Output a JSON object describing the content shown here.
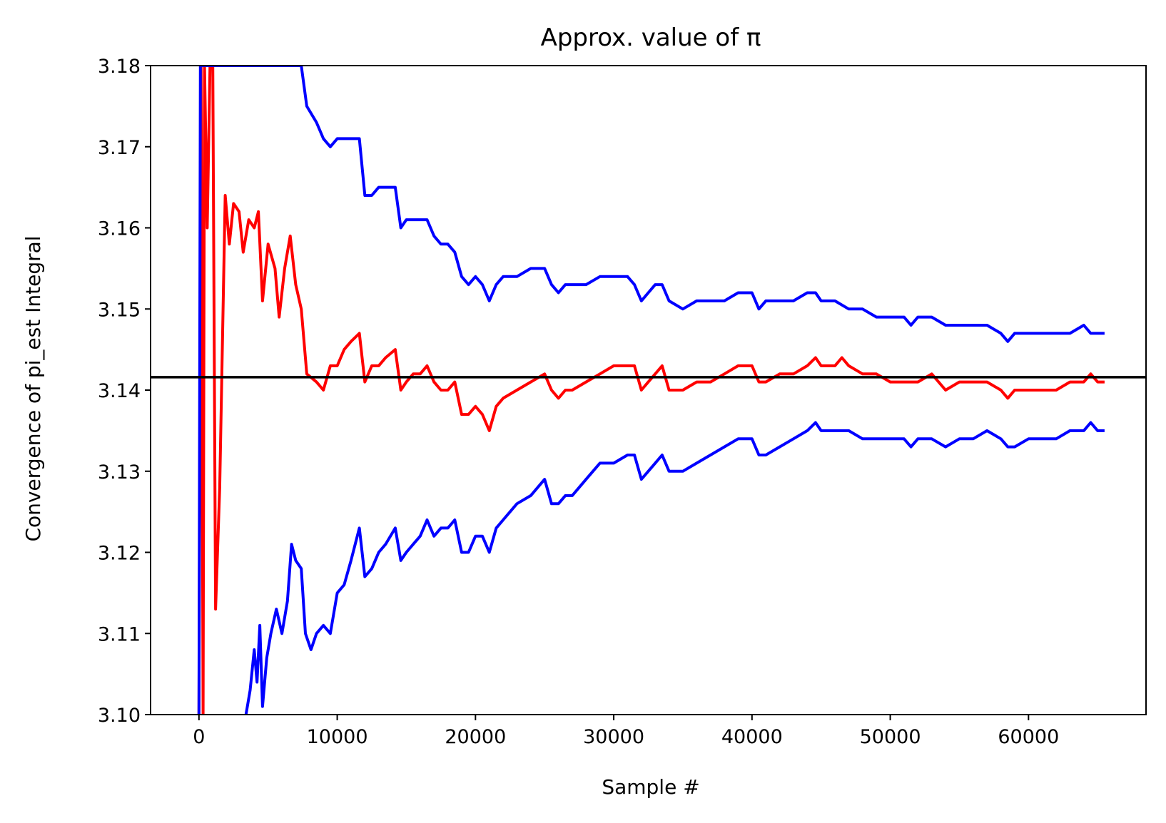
{
  "chart_data": {
    "type": "line",
    "title": "Approx. value of π",
    "xlabel": "Sample #",
    "ylabel": "Convergence of pi_est Integral",
    "xlim": [
      -3500,
      68500
    ],
    "ylim": [
      3.1,
      3.18
    ],
    "x_ticks": [
      0,
      10000,
      20000,
      30000,
      40000,
      50000,
      60000
    ],
    "x_tick_labels": [
      "0",
      "10000",
      "20000",
      "30000",
      "40000",
      "50000",
      "60000"
    ],
    "y_ticks": [
      3.1,
      3.11,
      3.12,
      3.13,
      3.14,
      3.15,
      3.16,
      3.17,
      3.18
    ],
    "y_tick_labels": [
      "3.10",
      "3.11",
      "3.12",
      "3.13",
      "3.14",
      "3.15",
      "3.16",
      "3.17",
      "3.18"
    ],
    "grid": false,
    "reference_line": {
      "y": 3.14159,
      "color": "#000000"
    },
    "series": [
      {
        "color": "#ff0000",
        "points": [
          [
            0,
            3.1
          ],
          [
            150,
            3.18
          ],
          [
            300,
            3.1
          ],
          [
            400,
            3.18
          ],
          [
            600,
            3.16
          ],
          [
            800,
            3.18
          ],
          [
            1000,
            3.18
          ],
          [
            1200,
            3.113
          ],
          [
            1500,
            3.128
          ],
          [
            1900,
            3.164
          ],
          [
            2200,
            3.158
          ],
          [
            2500,
            3.163
          ],
          [
            2900,
            3.162
          ],
          [
            3200,
            3.157
          ],
          [
            3600,
            3.161
          ],
          [
            4000,
            3.16
          ],
          [
            4300,
            3.162
          ],
          [
            4600,
            3.151
          ],
          [
            5000,
            3.158
          ],
          [
            5500,
            3.155
          ],
          [
            5800,
            3.149
          ],
          [
            6200,
            3.155
          ],
          [
            6600,
            3.159
          ],
          [
            7000,
            3.153
          ],
          [
            7400,
            3.15
          ],
          [
            7800,
            3.142
          ],
          [
            8500,
            3.141
          ],
          [
            9000,
            3.14
          ],
          [
            9500,
            3.143
          ],
          [
            10000,
            3.143
          ],
          [
            10500,
            3.145
          ],
          [
            11000,
            3.146
          ],
          [
            11600,
            3.147
          ],
          [
            12000,
            3.141
          ],
          [
            12500,
            3.143
          ],
          [
            13000,
            3.143
          ],
          [
            13500,
            3.144
          ],
          [
            14200,
            3.145
          ],
          [
            14600,
            3.14
          ],
          [
            15000,
            3.141
          ],
          [
            15500,
            3.142
          ],
          [
            16000,
            3.142
          ],
          [
            16500,
            3.143
          ],
          [
            17000,
            3.141
          ],
          [
            17500,
            3.14
          ],
          [
            18000,
            3.14
          ],
          [
            18500,
            3.141
          ],
          [
            19000,
            3.137
          ],
          [
            19500,
            3.137
          ],
          [
            20000,
            3.138
          ],
          [
            20500,
            3.137
          ],
          [
            21000,
            3.135
          ],
          [
            21500,
            3.138
          ],
          [
            22000,
            3.139
          ],
          [
            23000,
            3.14
          ],
          [
            24000,
            3.141
          ],
          [
            25000,
            3.142
          ],
          [
            25500,
            3.14
          ],
          [
            26000,
            3.139
          ],
          [
            26500,
            3.14
          ],
          [
            27000,
            3.14
          ],
          [
            28000,
            3.141
          ],
          [
            29000,
            3.142
          ],
          [
            30000,
            3.143
          ],
          [
            31000,
            3.143
          ],
          [
            31500,
            3.143
          ],
          [
            32000,
            3.14
          ],
          [
            32500,
            3.141
          ],
          [
            33000,
            3.142
          ],
          [
            33500,
            3.143
          ],
          [
            34000,
            3.14
          ],
          [
            35000,
            3.14
          ],
          [
            36000,
            3.141
          ],
          [
            37000,
            3.141
          ],
          [
            38000,
            3.142
          ],
          [
            39000,
            3.143
          ],
          [
            40000,
            3.143
          ],
          [
            40500,
            3.141
          ],
          [
            41000,
            3.141
          ],
          [
            42000,
            3.142
          ],
          [
            43000,
            3.142
          ],
          [
            44000,
            3.143
          ],
          [
            44600,
            3.144
          ],
          [
            45000,
            3.143
          ],
          [
            46000,
            3.143
          ],
          [
            46500,
            3.144
          ],
          [
            47000,
            3.143
          ],
          [
            48000,
            3.142
          ],
          [
            49000,
            3.142
          ],
          [
            50000,
            3.141
          ],
          [
            51000,
            3.141
          ],
          [
            51500,
            3.141
          ],
          [
            52000,
            3.141
          ],
          [
            53000,
            3.142
          ],
          [
            54000,
            3.14
          ],
          [
            55000,
            3.141
          ],
          [
            56000,
            3.141
          ],
          [
            57000,
            3.141
          ],
          [
            58000,
            3.14
          ],
          [
            58500,
            3.139
          ],
          [
            59000,
            3.14
          ],
          [
            60000,
            3.14
          ],
          [
            61000,
            3.14
          ],
          [
            62000,
            3.14
          ],
          [
            63000,
            3.141
          ],
          [
            64000,
            3.141
          ],
          [
            64500,
            3.142
          ],
          [
            65000,
            3.141
          ],
          [
            65500,
            3.141
          ]
        ]
      },
      {
        "color": "#0000ff",
        "points": [
          [
            0,
            3.1
          ],
          [
            100,
            3.18
          ],
          [
            7400,
            3.18
          ],
          [
            7800,
            3.175
          ],
          [
            8500,
            3.173
          ],
          [
            9000,
            3.171
          ],
          [
            9500,
            3.17
          ],
          [
            10000,
            3.171
          ],
          [
            10500,
            3.171
          ],
          [
            11000,
            3.171
          ],
          [
            11600,
            3.171
          ],
          [
            12000,
            3.164
          ],
          [
            12500,
            3.164
          ],
          [
            13000,
            3.165
          ],
          [
            13500,
            3.165
          ],
          [
            14200,
            3.165
          ],
          [
            14600,
            3.16
          ],
          [
            15000,
            3.161
          ],
          [
            16000,
            3.161
          ],
          [
            16500,
            3.161
          ],
          [
            17000,
            3.159
          ],
          [
            17500,
            3.158
          ],
          [
            18000,
            3.158
          ],
          [
            18500,
            3.157
          ],
          [
            19000,
            3.154
          ],
          [
            19500,
            3.153
          ],
          [
            20000,
            3.154
          ],
          [
            20500,
            3.153
          ],
          [
            21000,
            3.151
          ],
          [
            21500,
            3.153
          ],
          [
            22000,
            3.154
          ],
          [
            23000,
            3.154
          ],
          [
            24000,
            3.155
          ],
          [
            25000,
            3.155
          ],
          [
            25500,
            3.153
          ],
          [
            26000,
            3.152
          ],
          [
            26500,
            3.153
          ],
          [
            27000,
            3.153
          ],
          [
            28000,
            3.153
          ],
          [
            29000,
            3.154
          ],
          [
            30000,
            3.154
          ],
          [
            31000,
            3.154
          ],
          [
            31500,
            3.153
          ],
          [
            32000,
            3.151
          ],
          [
            32500,
            3.152
          ],
          [
            33000,
            3.153
          ],
          [
            33500,
            3.153
          ],
          [
            34000,
            3.151
          ],
          [
            35000,
            3.15
          ],
          [
            36000,
            3.151
          ],
          [
            37000,
            3.151
          ],
          [
            38000,
            3.151
          ],
          [
            39000,
            3.152
          ],
          [
            40000,
            3.152
          ],
          [
            40500,
            3.15
          ],
          [
            41000,
            3.151
          ],
          [
            42000,
            3.151
          ],
          [
            43000,
            3.151
          ],
          [
            44000,
            3.152
          ],
          [
            44600,
            3.152
          ],
          [
            45000,
            3.151
          ],
          [
            46000,
            3.151
          ],
          [
            47000,
            3.15
          ],
          [
            48000,
            3.15
          ],
          [
            49000,
            3.149
          ],
          [
            50000,
            3.149
          ],
          [
            51000,
            3.149
          ],
          [
            51500,
            3.148
          ],
          [
            52000,
            3.149
          ],
          [
            53000,
            3.149
          ],
          [
            54000,
            3.148
          ],
          [
            55000,
            3.148
          ],
          [
            56000,
            3.148
          ],
          [
            57000,
            3.148
          ],
          [
            58000,
            3.147
          ],
          [
            58500,
            3.146
          ],
          [
            59000,
            3.147
          ],
          [
            60000,
            3.147
          ],
          [
            61000,
            3.147
          ],
          [
            62000,
            3.147
          ],
          [
            63000,
            3.147
          ],
          [
            64000,
            3.148
          ],
          [
            64500,
            3.147
          ],
          [
            65000,
            3.147
          ],
          [
            65500,
            3.147
          ]
        ]
      },
      {
        "color": "#0000ff",
        "points": [
          [
            3400,
            3.1
          ],
          [
            3700,
            3.103
          ],
          [
            4000,
            3.108
          ],
          [
            4200,
            3.104
          ],
          [
            4400,
            3.111
          ],
          [
            4600,
            3.101
          ],
          [
            4900,
            3.107
          ],
          [
            5200,
            3.11
          ],
          [
            5600,
            3.113
          ],
          [
            6000,
            3.11
          ],
          [
            6400,
            3.114
          ],
          [
            6700,
            3.121
          ],
          [
            7000,
            3.119
          ],
          [
            7400,
            3.118
          ],
          [
            7700,
            3.11
          ],
          [
            8100,
            3.108
          ],
          [
            8500,
            3.11
          ],
          [
            9000,
            3.111
          ],
          [
            9500,
            3.11
          ],
          [
            10000,
            3.115
          ],
          [
            10500,
            3.116
          ],
          [
            11000,
            3.119
          ],
          [
            11600,
            3.123
          ],
          [
            12000,
            3.117
          ],
          [
            12500,
            3.118
          ],
          [
            13000,
            3.12
          ],
          [
            13500,
            3.121
          ],
          [
            14200,
            3.123
          ],
          [
            14600,
            3.119
          ],
          [
            15000,
            3.12
          ],
          [
            15500,
            3.121
          ],
          [
            16000,
            3.122
          ],
          [
            16500,
            3.124
          ],
          [
            17000,
            3.122
          ],
          [
            17500,
            3.123
          ],
          [
            18000,
            3.123
          ],
          [
            18500,
            3.124
          ],
          [
            19000,
            3.12
          ],
          [
            19500,
            3.12
          ],
          [
            20000,
            3.122
          ],
          [
            20500,
            3.122
          ],
          [
            21000,
            3.12
          ],
          [
            21500,
            3.123
          ],
          [
            22000,
            3.124
          ],
          [
            23000,
            3.126
          ],
          [
            24000,
            3.127
          ],
          [
            25000,
            3.129
          ],
          [
            25500,
            3.126
          ],
          [
            26000,
            3.126
          ],
          [
            26500,
            3.127
          ],
          [
            27000,
            3.127
          ],
          [
            28000,
            3.129
          ],
          [
            29000,
            3.131
          ],
          [
            30000,
            3.131
          ],
          [
            31000,
            3.132
          ],
          [
            31500,
            3.132
          ],
          [
            32000,
            3.129
          ],
          [
            32500,
            3.13
          ],
          [
            33000,
            3.131
          ],
          [
            33500,
            3.132
          ],
          [
            34000,
            3.13
          ],
          [
            35000,
            3.13
          ],
          [
            36000,
            3.131
          ],
          [
            37000,
            3.132
          ],
          [
            38000,
            3.133
          ],
          [
            39000,
            3.134
          ],
          [
            40000,
            3.134
          ],
          [
            40500,
            3.132
          ],
          [
            41000,
            3.132
          ],
          [
            42000,
            3.133
          ],
          [
            43000,
            3.134
          ],
          [
            44000,
            3.135
          ],
          [
            44600,
            3.136
          ],
          [
            45000,
            3.135
          ],
          [
            46000,
            3.135
          ],
          [
            46500,
            3.135
          ],
          [
            47000,
            3.135
          ],
          [
            48000,
            3.134
          ],
          [
            49000,
            3.134
          ],
          [
            50000,
            3.134
          ],
          [
            51000,
            3.134
          ],
          [
            51500,
            3.133
          ],
          [
            52000,
            3.134
          ],
          [
            53000,
            3.134
          ],
          [
            54000,
            3.133
          ],
          [
            55000,
            3.134
          ],
          [
            56000,
            3.134
          ],
          [
            57000,
            3.135
          ],
          [
            58000,
            3.134
          ],
          [
            58500,
            3.133
          ],
          [
            59000,
            3.133
          ],
          [
            60000,
            3.134
          ],
          [
            61000,
            3.134
          ],
          [
            62000,
            3.134
          ],
          [
            63000,
            3.135
          ],
          [
            64000,
            3.135
          ],
          [
            64500,
            3.136
          ],
          [
            65000,
            3.135
          ],
          [
            65500,
            3.135
          ]
        ]
      }
    ]
  }
}
